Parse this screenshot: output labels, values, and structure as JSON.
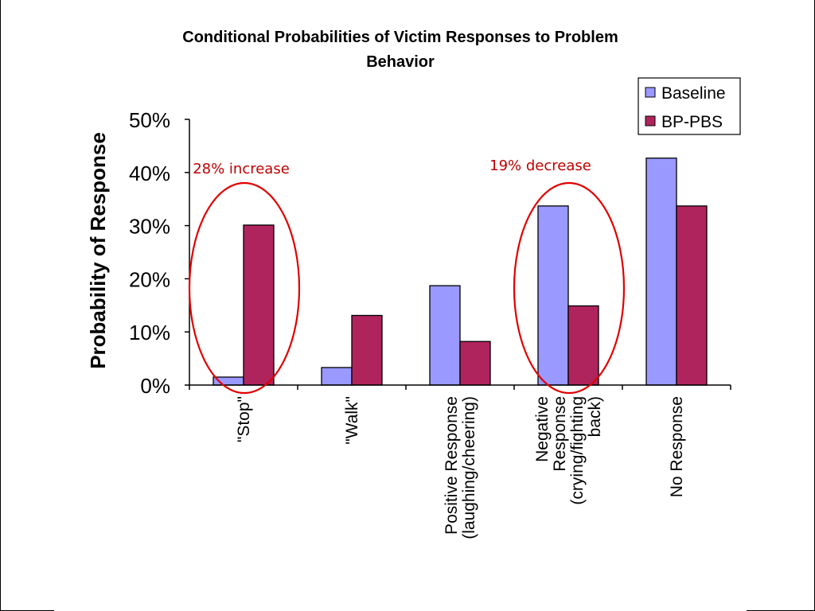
{
  "chart_data": {
    "type": "bar",
    "title_line1": "Conditional Probabilities of Victim Responses to Problem",
    "title_line2": "Behavior",
    "ylabel": "Probability of Response",
    "xlabel": "",
    "ylim": [
      0,
      0.5
    ],
    "yticks": [
      {
        "value": 0,
        "label": "0%"
      },
      {
        "value": 0.1,
        "label": "10%"
      },
      {
        "value": 0.2,
        "label": "20%"
      },
      {
        "value": 0.3,
        "label": "30%"
      },
      {
        "value": 0.4,
        "label": "40%"
      },
      {
        "value": 0.5,
        "label": "50%"
      }
    ],
    "categories": [
      [
        "\"Stop\""
      ],
      [
        "\"Walk\""
      ],
      [
        "Positive Response",
        "(laughing/cheering)"
      ],
      [
        "Negative",
        "Response",
        "(crying/fighting",
        "back)"
      ],
      [
        "No Response"
      ]
    ],
    "series": [
      {
        "name": "Baseline",
        "color": "#9999ff",
        "values": [
          0.015,
          0.033,
          0.187,
          0.337,
          0.427
        ]
      },
      {
        "name": "BP-PBS",
        "color": "#b0245e",
        "values": [
          0.301,
          0.131,
          0.082,
          0.149,
          0.337
        ]
      }
    ],
    "legend_position": "top-right",
    "grid": false,
    "annotations": [
      {
        "text": "28% increase",
        "category_index": 0,
        "color": "#c00000"
      },
      {
        "text": "19% decrease",
        "category_index": 3,
        "color": "#c00000"
      }
    ]
  }
}
